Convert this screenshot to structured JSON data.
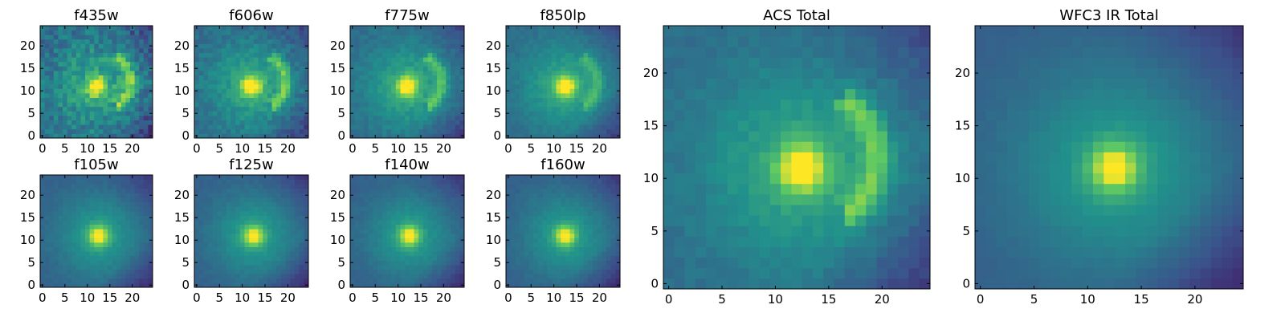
{
  "figure": {
    "colormap": "viridis",
    "colormap_stops": [
      "#440154",
      "#3b528b",
      "#21918c",
      "#5ec962",
      "#fde725"
    ]
  },
  "chart_data": [
    {
      "type": "heatmap",
      "title": "f435w",
      "grid_size": 25,
      "xlim": [
        -0.5,
        24.5
      ],
      "ylim": [
        -0.5,
        24.5
      ],
      "xticks": [
        "0",
        "5",
        "10",
        "15",
        "20"
      ],
      "yticks": [
        "0",
        "5",
        "10",
        "15",
        "20"
      ],
      "features": {
        "core": {
          "x": 12,
          "y": 11,
          "amp": 0.55
        },
        "arc": {
          "x": 13,
          "y": 12,
          "radius": 6.5,
          "amp": 0.35
        },
        "background": 0.35,
        "noise": 0.22
      }
    },
    {
      "type": "heatmap",
      "title": "f606w",
      "grid_size": 25,
      "xlim": [
        -0.5,
        24.5
      ],
      "ylim": [
        -0.5,
        24.5
      ],
      "xticks": [
        "0",
        "5",
        "10",
        "15",
        "20"
      ],
      "yticks": [
        "0",
        "5",
        "10",
        "15",
        "20"
      ],
      "features": {
        "core": {
          "x": 12,
          "y": 11,
          "amp": 0.6
        },
        "arc": {
          "x": 13,
          "y": 12,
          "radius": 6.5,
          "amp": 0.3
        },
        "background": 0.35,
        "noise": 0.12
      }
    },
    {
      "type": "heatmap",
      "title": "f775w",
      "grid_size": 25,
      "xlim": [
        -0.5,
        24.5
      ],
      "ylim": [
        -0.5,
        24.5
      ],
      "xticks": [
        "0",
        "5",
        "10",
        "15",
        "20"
      ],
      "yticks": [
        "0",
        "5",
        "10",
        "15",
        "20"
      ],
      "features": {
        "core": {
          "x": 12,
          "y": 11,
          "amp": 0.6
        },
        "arc": {
          "x": 13,
          "y": 12,
          "radius": 6.5,
          "amp": 0.25
        },
        "background": 0.35,
        "noise": 0.08
      }
    },
    {
      "type": "heatmap",
      "title": "f850lp",
      "grid_size": 25,
      "xlim": [
        -0.5,
        24.5
      ],
      "ylim": [
        -0.5,
        24.5
      ],
      "xticks": [
        "0",
        "5",
        "10",
        "15",
        "20"
      ],
      "yticks": [
        "0",
        "5",
        "10",
        "15",
        "20"
      ],
      "features": {
        "core": {
          "x": 12.5,
          "y": 11,
          "amp": 0.6
        },
        "arc": {
          "x": 13,
          "y": 12,
          "radius": 6.5,
          "amp": 0.18
        },
        "background": 0.35,
        "noise": 0.06
      }
    },
    {
      "type": "heatmap",
      "title": "f105w",
      "grid_size": 25,
      "xlim": [
        -0.5,
        24.5
      ],
      "ylim": [
        -0.5,
        24.5
      ],
      "xticks": [
        "0",
        "5",
        "10",
        "15",
        "20"
      ],
      "yticks": [
        "0",
        "5",
        "10",
        "15",
        "20"
      ],
      "features": {
        "core": {
          "x": 12.5,
          "y": 11,
          "amp": 0.55
        },
        "arc": {
          "x": 13,
          "y": 12,
          "radius": 6.5,
          "amp": 0.0
        },
        "background": 0.3,
        "noise": 0.04
      }
    },
    {
      "type": "heatmap",
      "title": "f125w",
      "grid_size": 25,
      "xlim": [
        -0.5,
        24.5
      ],
      "ylim": [
        -0.5,
        24.5
      ],
      "xticks": [
        "0",
        "5",
        "10",
        "15",
        "20"
      ],
      "yticks": [
        "0",
        "5",
        "10",
        "15",
        "20"
      ],
      "features": {
        "core": {
          "x": 12.5,
          "y": 11,
          "amp": 0.55
        },
        "arc": {
          "x": 13,
          "y": 12,
          "radius": 6.5,
          "amp": 0.0
        },
        "background": 0.3,
        "noise": 0.04
      }
    },
    {
      "type": "heatmap",
      "title": "f140w",
      "grid_size": 25,
      "xlim": [
        -0.5,
        24.5
      ],
      "ylim": [
        -0.5,
        24.5
      ],
      "xticks": [
        "0",
        "5",
        "10",
        "15",
        "20"
      ],
      "yticks": [
        "0",
        "5",
        "10",
        "15",
        "20"
      ],
      "features": {
        "core": {
          "x": 12.5,
          "y": 11,
          "amp": 0.55
        },
        "arc": {
          "x": 13,
          "y": 12,
          "radius": 6.5,
          "amp": 0.0
        },
        "background": 0.3,
        "noise": 0.04
      }
    },
    {
      "type": "heatmap",
      "title": "f160w",
      "grid_size": 25,
      "xlim": [
        -0.5,
        24.5
      ],
      "ylim": [
        -0.5,
        24.5
      ],
      "xticks": [
        "0",
        "5",
        "10",
        "15",
        "20"
      ],
      "yticks": [
        "0",
        "5",
        "10",
        "15",
        "20"
      ],
      "features": {
        "core": {
          "x": 12.5,
          "y": 11,
          "amp": 0.55
        },
        "arc": {
          "x": 13,
          "y": 12,
          "radius": 6.5,
          "amp": 0.0
        },
        "background": 0.3,
        "noise": 0.04
      }
    },
    {
      "type": "heatmap",
      "title": "ACS Total",
      "grid_size": 25,
      "xlim": [
        -0.5,
        24.5
      ],
      "ylim": [
        -0.5,
        24.5
      ],
      "xticks": [
        "0",
        "5",
        "10",
        "15",
        "20"
      ],
      "yticks": [
        "0",
        "5",
        "10",
        "15",
        "20"
      ],
      "features": {
        "core": {
          "x": 12.5,
          "y": 11,
          "amp": 0.6
        },
        "arc": {
          "x": 13,
          "y": 12,
          "radius": 6.5,
          "amp": 0.3
        },
        "background": 0.35,
        "noise": 0.06
      }
    },
    {
      "type": "heatmap",
      "title": "WFC3 IR Total",
      "grid_size": 25,
      "xlim": [
        -0.5,
        24.5
      ],
      "ylim": [
        -0.5,
        24.5
      ],
      "xticks": [
        "0",
        "5",
        "10",
        "15",
        "20"
      ],
      "yticks": [
        "0",
        "5",
        "10",
        "15",
        "20"
      ],
      "features": {
        "core": {
          "x": 12.5,
          "y": 11,
          "amp": 0.55
        },
        "arc": {
          "x": 13,
          "y": 12,
          "radius": 6.5,
          "amp": 0.0
        },
        "background": 0.3,
        "noise": 0.02
      }
    }
  ]
}
